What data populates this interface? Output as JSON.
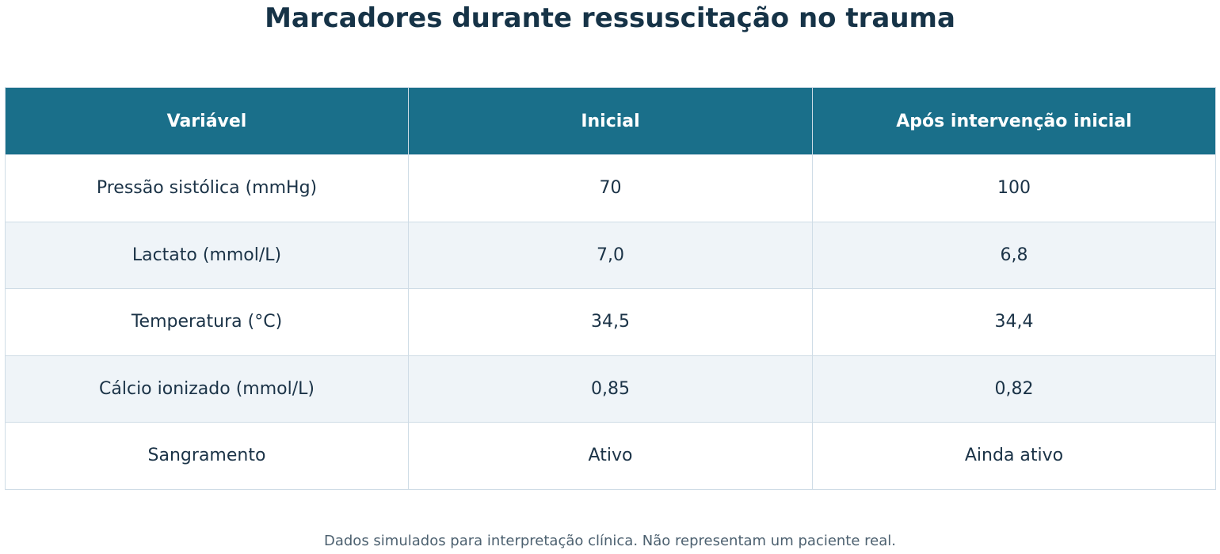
{
  "chart_data": {
    "type": "table",
    "title": "Marcadores durante ressuscitação no trauma",
    "columns": [
      "Variável",
      "Inicial",
      "Após intervenção inicial"
    ],
    "rows": [
      [
        "Pressão sistólica (mmHg)",
        "70",
        "100"
      ],
      [
        "Lactato (mmol/L)",
        "7,0",
        "6,8"
      ],
      [
        "Temperatura (°C)",
        "34,5",
        "34,4"
      ],
      [
        "Cálcio ionizado (mmol/L)",
        "0,85",
        "0,82"
      ],
      [
        "Sangramento",
        "Ativo",
        "Ainda ativo"
      ]
    ],
    "footnote": "Dados simulados para interpretação clínica. Não representam um paciente real."
  },
  "colors": {
    "header_bg": "#1a6f8a",
    "header_text": "#ffffff",
    "title_text": "#163347",
    "body_text": "#1b3347",
    "stripe_bg": "#eff4f8",
    "border": "#cfdce6"
  }
}
